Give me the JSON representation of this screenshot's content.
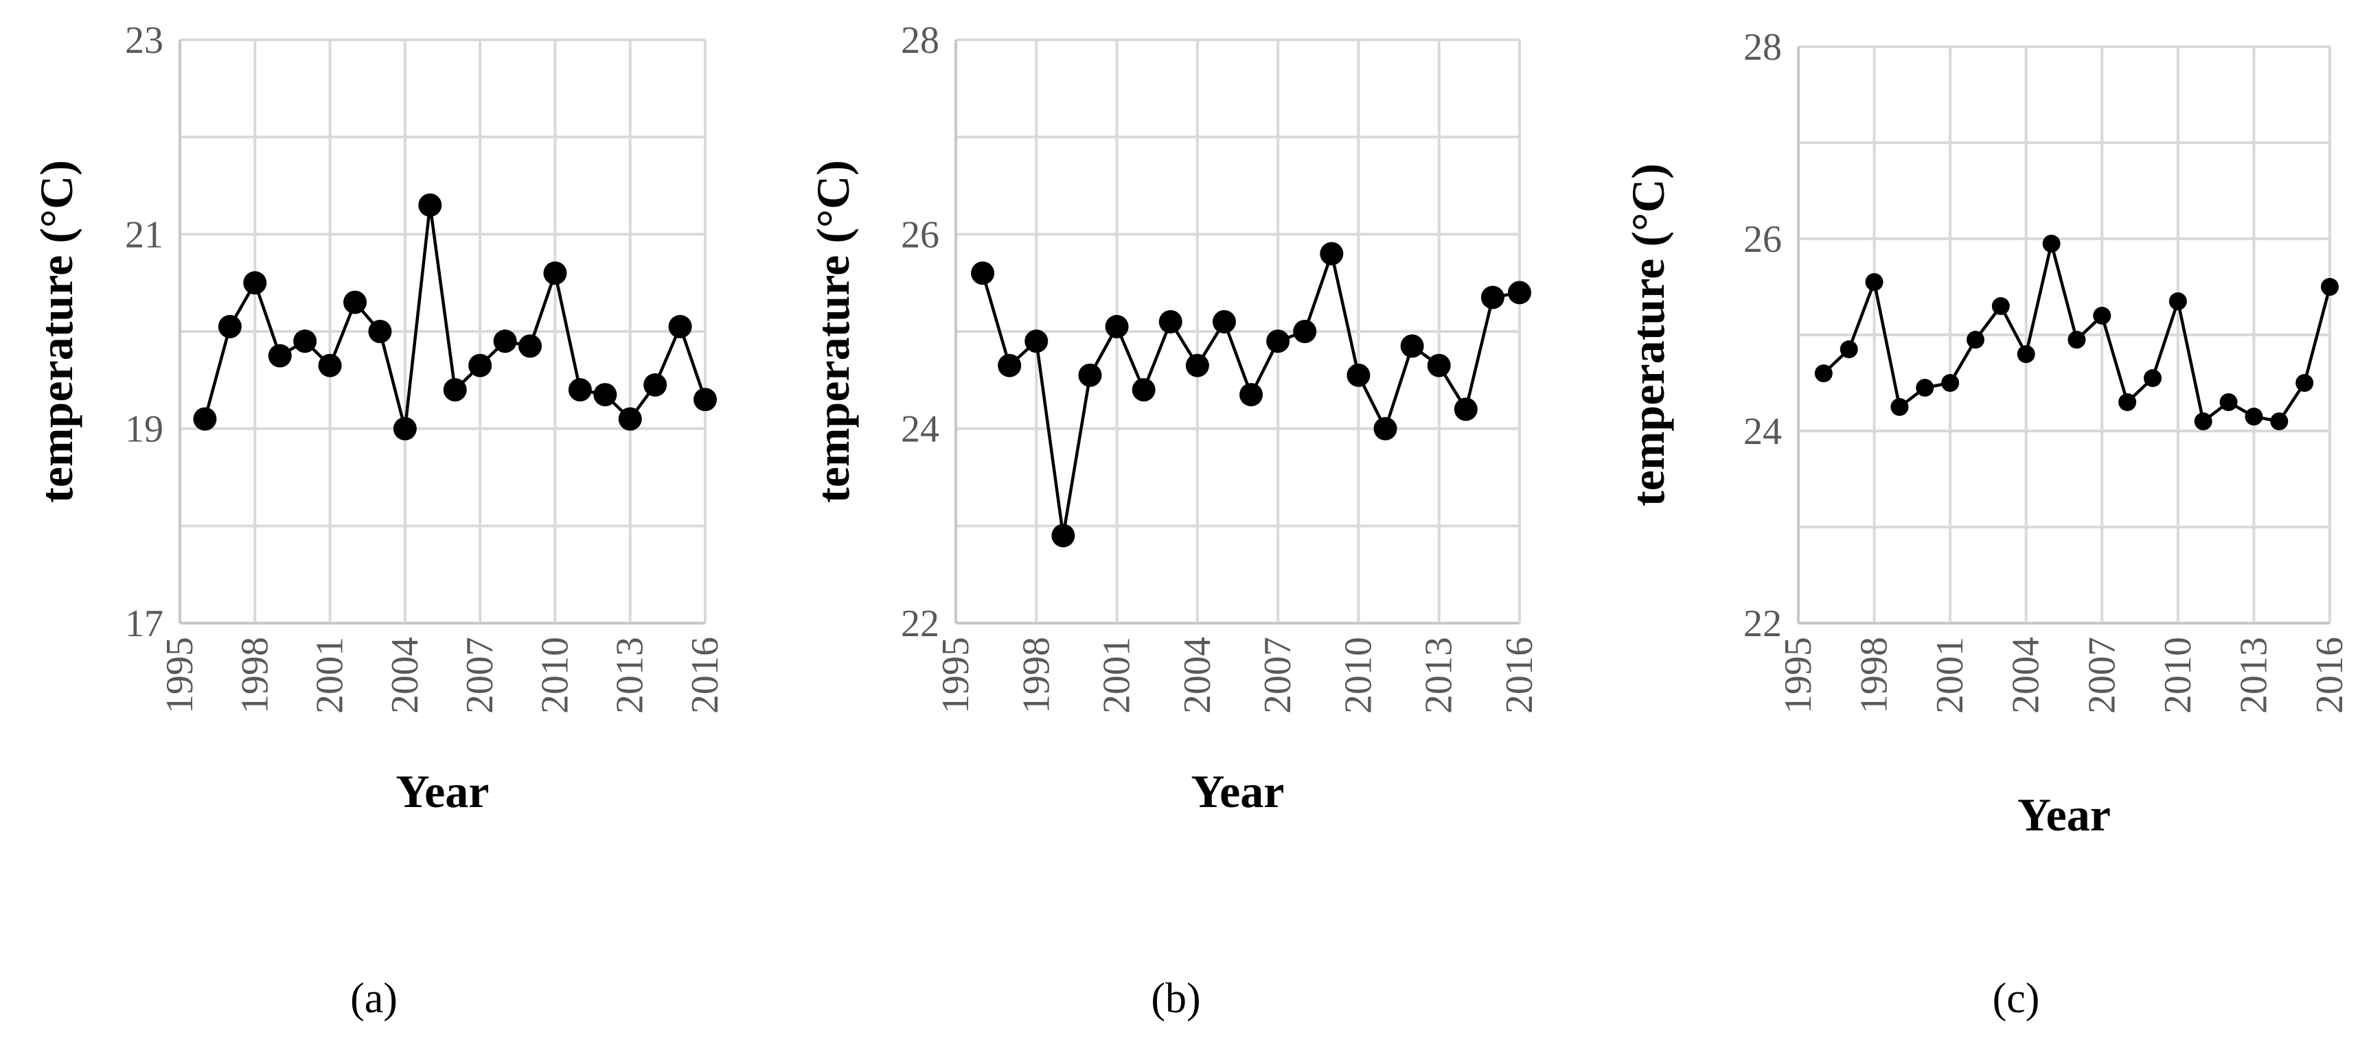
{
  "chart_data": [
    {
      "type": "line",
      "panel_label": "(a)",
      "xlabel": "Year",
      "ylabel": "temperature (°C)",
      "xlim": [
        1995,
        2016
      ],
      "ylim": [
        17,
        23
      ],
      "x_ticks": [
        "1995",
        "1998",
        "2001",
        "2004",
        "2007",
        "2010",
        "2013",
        "2016"
      ],
      "y_ticks": [
        "17",
        "19",
        "21",
        "23"
      ],
      "y_minor_step": 1,
      "marker_size": "large",
      "x": [
        1996,
        1997,
        1998,
        1999,
        2000,
        2001,
        2002,
        2003,
        2004,
        2005,
        2006,
        2007,
        2008,
        2009,
        2010,
        2011,
        2012,
        2013,
        2014,
        2015,
        2016
      ],
      "values": [
        19.1,
        20.05,
        20.5,
        19.75,
        19.9,
        19.65,
        20.3,
        20.0,
        19.0,
        21.3,
        19.4,
        19.65,
        19.9,
        19.85,
        20.6,
        19.4,
        19.35,
        19.1,
        19.45,
        20.05,
        19.3
      ]
    },
    {
      "type": "line",
      "panel_label": "(b)",
      "xlabel": "Year",
      "ylabel": "temperature (°C)",
      "xlim": [
        1995,
        2016
      ],
      "ylim": [
        22,
        28
      ],
      "x_ticks": [
        "1995",
        "1998",
        "2001",
        "2004",
        "2007",
        "2010",
        "2013",
        "2016"
      ],
      "y_ticks": [
        "22",
        "24",
        "26",
        "28"
      ],
      "y_minor_step": 1,
      "marker_size": "large",
      "x": [
        1996,
        1997,
        1998,
        1999,
        2000,
        2001,
        2002,
        2003,
        2004,
        2005,
        2006,
        2007,
        2008,
        2009,
        2010,
        2011,
        2012,
        2013,
        2014,
        2015,
        2016
      ],
      "values": [
        25.6,
        24.65,
        24.9,
        22.9,
        24.55,
        25.05,
        24.4,
        25.1,
        24.65,
        25.1,
        24.35,
        24.9,
        25.0,
        25.8,
        24.55,
        24.0,
        24.85,
        24.65,
        24.2,
        25.35,
        25.4
      ]
    },
    {
      "type": "line",
      "panel_label": "(c)",
      "xlabel": "Year",
      "ylabel": "temperature (°C)",
      "xlim": [
        1995,
        2016
      ],
      "ylim": [
        22,
        28
      ],
      "x_ticks": [
        "1995",
        "1998",
        "2001",
        "2004",
        "2007",
        "2010",
        "2013",
        "2016"
      ],
      "y_ticks": [
        "22",
        "24",
        "26",
        "28"
      ],
      "y_minor_step": 1,
      "marker_size": "small",
      "x": [
        1996,
        1997,
        1998,
        1999,
        2000,
        2001,
        2002,
        2003,
        2004,
        2005,
        2006,
        2007,
        2008,
        2009,
        2010,
        2011,
        2012,
        2013,
        2014,
        2015,
        2016
      ],
      "values": [
        24.6,
        24.85,
        25.55,
        24.25,
        24.45,
        24.5,
        24.95,
        25.3,
        24.8,
        25.95,
        24.95,
        25.2,
        24.3,
        24.55,
        25.35,
        24.1,
        24.3,
        24.15,
        24.1,
        24.5,
        25.5
      ]
    }
  ]
}
